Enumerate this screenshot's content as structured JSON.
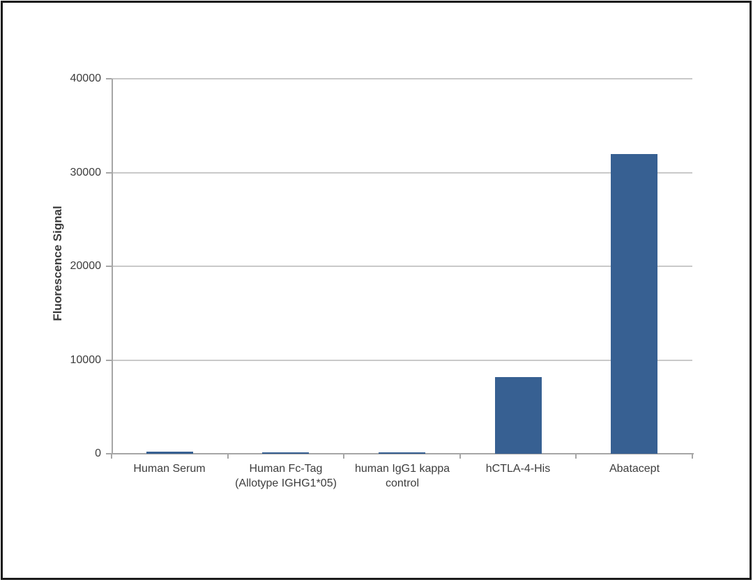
{
  "chart_data": {
    "type": "bar",
    "title": "",
    "xlabel": "",
    "ylabel": "Fluorescence Signal",
    "categories": [
      "Human Serum",
      "Human Fc-Tag (Allotype IGHG1*05)",
      "human IgG1 kappa control",
      "hCTLA-4-His",
      "Abatacept"
    ],
    "values": [
      200,
      150,
      150,
      8200,
      32000
    ],
    "ylim": [
      0,
      40000
    ],
    "ytick_interval": 10000,
    "ytick_labels": [
      "0",
      "10000",
      "20000",
      "30000",
      "40000"
    ],
    "grid": true,
    "legend_position": "none",
    "bar_color": "#376092"
  },
  "colors": {
    "bar": "#376092",
    "gridline": "#c9c9c9",
    "axis": "#a6a6a6",
    "text": "#3d3d3d",
    "frame": "#1b1b1b",
    "background": "#ffffff"
  }
}
